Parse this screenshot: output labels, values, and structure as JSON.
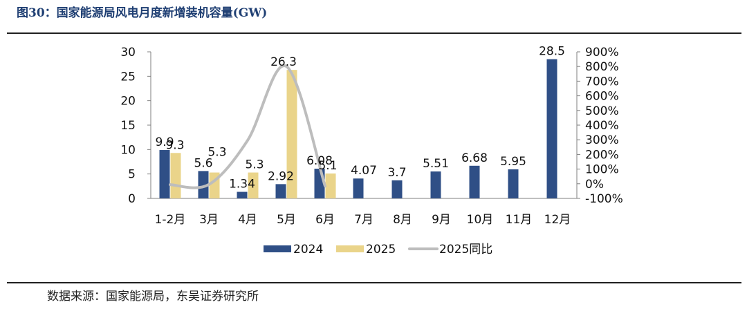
{
  "figure": {
    "title": "图30：国家能源局风电月度新增装机容量(GW)",
    "source": "数据来源：国家能源局，东吴证券研究所"
  },
  "chart_data": {
    "type": "bar",
    "categories": [
      "1-2月",
      "3月",
      "4月",
      "5月",
      "6月",
      "7月",
      "8月",
      "9月",
      "10月",
      "11月",
      "12月"
    ],
    "series": [
      {
        "name": "2024",
        "type": "bar",
        "axis": "left",
        "color": "#2f4f86",
        "values": [
          9.9,
          5.6,
          1.34,
          2.92,
          6.08,
          4.07,
          3.7,
          5.51,
          6.68,
          5.95,
          28.5
        ],
        "labels": [
          "9.9",
          "5.6",
          "1.34",
          "2.92",
          "6.08",
          "4.07",
          "3.7",
          "5.51",
          "6.68",
          "5.95",
          "28.5"
        ]
      },
      {
        "name": "2025",
        "type": "bar",
        "axis": "left",
        "color": "#ead48a",
        "values": [
          9.3,
          5.3,
          5.3,
          26.3,
          5.1,
          null,
          null,
          null,
          null,
          null,
          null
        ],
        "labels": [
          "9.3",
          "5.3",
          "5.3",
          "26.3",
          "5.1",
          null,
          null,
          null,
          null,
          null,
          null
        ]
      },
      {
        "name": "2025同比",
        "type": "line",
        "axis": "right",
        "color": "#bdbdbd",
        "smooth": true,
        "values": [
          -6,
          -5,
          296,
          801,
          -16,
          null,
          null,
          null,
          null,
          null,
          null
        ]
      }
    ],
    "ylim": [
      0,
      30
    ],
    "yticks": [
      0,
      5,
      10,
      15,
      20,
      25,
      30
    ],
    "y2lim": [
      -100,
      900
    ],
    "y2ticks": [
      -100,
      0,
      100,
      200,
      300,
      400,
      500,
      600,
      700,
      800,
      900
    ],
    "y2format": "percent",
    "grid": false,
    "legend": "bottom"
  }
}
